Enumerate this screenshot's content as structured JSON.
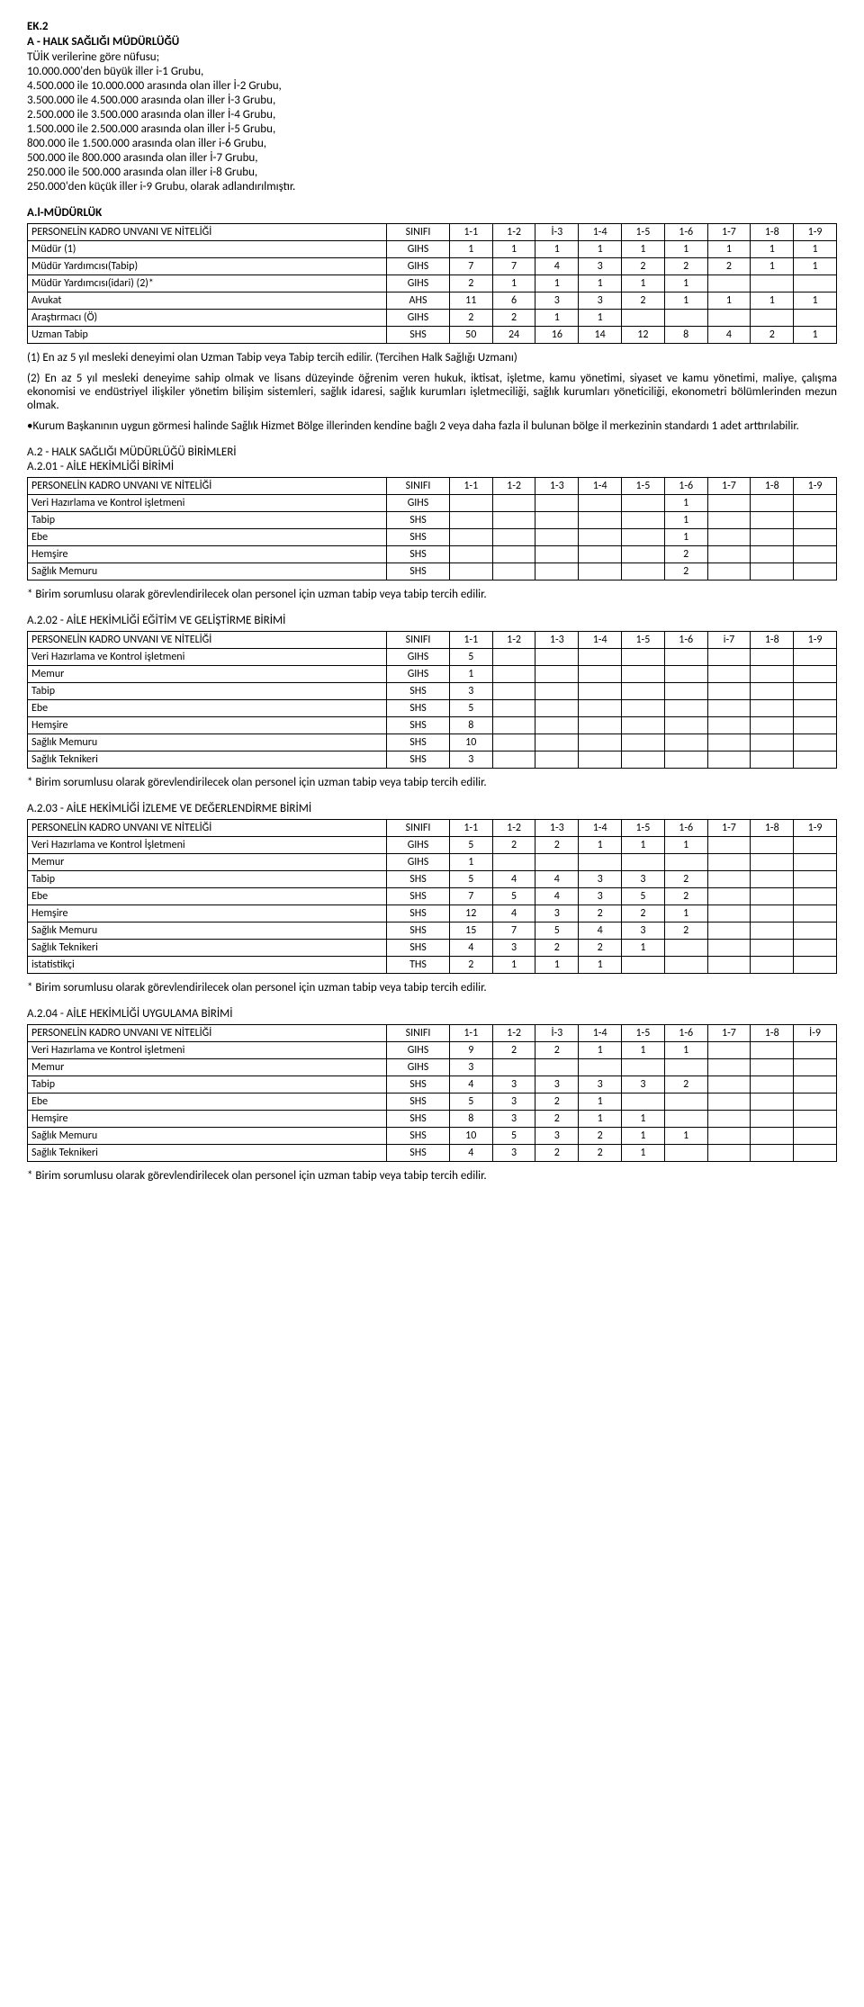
{
  "top": {
    "ek": "EK.2",
    "title": "A - HALK SAĞLIĞI MÜDÜRLÜĞÜ",
    "sub": "TÜİK verilerine göre nüfusu;",
    "rules": [
      "10.000.000'den büyük iller i-1 Grubu,",
      "4.500.000 ile 10.000.000 arasında olan iller İ-2 Grubu,",
      "3.500.000 ile 4.500.000 arasında olan iller İ-3 Grubu,",
      "2.500.000 ile 3.500.000 arasında olan iller İ-4 Grubu,",
      "1.500.000 ile 2.500.000 arasında olan iller İ-5 Grubu,",
      "800.000 ile 1.500.000 arasında olan iller i-6 Grubu,",
      "500.000 ile 800.000 arasında olan iller İ-7 Grubu,",
      "250.000 ile 500.000 arasında olan iller i-8 Grubu,",
      "250.000'den küçük iller i-9 Grubu, olarak adlandırılmıştır."
    ]
  },
  "t1": {
    "title": "A.l-MÜDÜRLÜK",
    "headerLabel": "PERSONELİN KADRO UNVANI VE NİTELİĞİ",
    "sinifi": "SINIFI",
    "cols": [
      "1-1",
      "1-2",
      "İ-3",
      "1-4",
      "1-5",
      "1-6",
      "1-7",
      "1-8",
      "1-9"
    ],
    "rows": [
      {
        "l": "Müdür (1)",
        "s": "GIHS",
        "v": [
          "1",
          "1",
          "1",
          "1",
          "1",
          "1",
          "1",
          "1",
          "1"
        ]
      },
      {
        "l": "Müdür Yardımcısı(Tabip)",
        "s": "GIHS",
        "v": [
          "7",
          "7",
          "4",
          "3",
          "2",
          "2",
          "2",
          "1",
          "1"
        ]
      },
      {
        "l": "Müdür Yardımcısı(idari) (2)*",
        "s": "GIHS",
        "v": [
          "2",
          "1",
          "1",
          "1",
          "1",
          "1",
          "",
          "",
          ""
        ]
      },
      {
        "l": "Avukat",
        "s": "AHS",
        "v": [
          "11",
          "6",
          "3",
          "3",
          "2",
          "1",
          "1",
          "1",
          "1"
        ]
      },
      {
        "l": "Araştırmacı (Ö)",
        "s": "GIHS",
        "v": [
          "2",
          "2",
          "1",
          "1",
          "",
          "",
          "",
          "",
          ""
        ]
      },
      {
        "l": "Uzman Tabip",
        "s": "SHS",
        "v": [
          "50",
          "24",
          "16",
          "14",
          "12",
          "8",
          "4",
          "2",
          "1"
        ]
      }
    ],
    "notes": [
      "(1) En az 5 yıl mesleki deneyimi olan Uzman Tabip veya Tabip tercih edilir. (Tercihen Halk Sağlığı Uzmanı)",
      "(2) En az 5 yıl mesleki deneyime sahip olmak ve lisans düzeyinde öğrenim veren hukuk, iktisat, işletme, kamu yönetimi, siyaset ve kamu yönetimi, maliye, çalışma ekonomisi ve endüstriyel ilişkiler yönetim bilişim sistemleri, sağlık idaresi, sağlık kurumları işletmeciliği, sağlık kurumları yöneticiliği, ekonometri bölümlerinden mezun olmak.",
      "•Kurum Başkanının uygun görmesi halinde Sağlık Hizmet Bölge illerinden kendine bağlı 2 veya daha fazla il bulunan bölge il merkezinin standardı 1 adet arttırılabilir."
    ]
  },
  "t2": {
    "line1": "A.2 - HALK SAĞLIĞI MÜDÜRLÜĞÜ BİRİMLERİ",
    "line2": "A.2.01 - AİLE HEKİMLİĞİ BİRİMİ",
    "headerLabel": "PERSONELİN KADRO UNVANI VE NİTELİĞİ",
    "sinifi": "SINIFI",
    "cols": [
      "1-1",
      "1-2",
      "1-3",
      "1-4",
      "1-5",
      "1-6",
      "1-7",
      "1-8",
      "1-9"
    ],
    "rows": [
      {
        "l": "Veri Hazırlama ve Kontrol işletmeni",
        "s": "GIHS",
        "v": [
          "",
          "",
          "",
          "",
          "",
          "1",
          "",
          "",
          ""
        ]
      },
      {
        "l": "Tabip",
        "s": "SHS",
        "v": [
          "",
          "",
          "",
          "",
          "",
          "1",
          "",
          "",
          ""
        ]
      },
      {
        "l": "Ebe",
        "s": "SHS",
        "v": [
          "",
          "",
          "",
          "",
          "",
          "1",
          "",
          "",
          ""
        ]
      },
      {
        "l": "Hemşire",
        "s": "SHS",
        "v": [
          "",
          "",
          "",
          "",
          "",
          "2",
          "",
          "",
          ""
        ]
      },
      {
        "l": "Sağlık Memuru",
        "s": "SHS",
        "v": [
          "",
          "",
          "",
          "",
          "",
          "2",
          "",
          "",
          ""
        ]
      }
    ],
    "note": "* Birim sorumlusu olarak görevlendirilecek olan personel için uzman tabip veya tabip tercih edilir."
  },
  "t3": {
    "title": "A.2.02 - AİLE HEKİMLİĞİ EĞİTİM VE GELİŞTİRME BİRİMİ",
    "headerLabel": "PERSONELİN KADRO UNVANI VE NİTELİĞİ",
    "sinifi": "SINIFI",
    "cols": [
      "1-1",
      "1-2",
      "1-3",
      "1-4",
      "1-5",
      "1-6",
      "i-7",
      "1-8",
      "1-9"
    ],
    "rows": [
      {
        "l": "Veri Hazırlama ve Kontrol işletmeni",
        "s": "GIHS",
        "v": [
          "5",
          "",
          "",
          "",
          "",
          "",
          "",
          "",
          ""
        ]
      },
      {
        "l": "Memur",
        "s": "GIHS",
        "v": [
          "1",
          "",
          "",
          "",
          "",
          "",
          "",
          "",
          ""
        ]
      },
      {
        "l": "Tabip",
        "s": "SHS",
        "v": [
          "3",
          "",
          "",
          "",
          "",
          "",
          "",
          "",
          ""
        ]
      },
      {
        "l": "Ebe",
        "s": "SHS",
        "v": [
          "5",
          "",
          "",
          "",
          "",
          "",
          "",
          "",
          ""
        ]
      },
      {
        "l": "Hemşire",
        "s": "SHS",
        "v": [
          "8",
          "",
          "",
          "",
          "",
          "",
          "",
          "",
          ""
        ]
      },
      {
        "l": "Sağlık Memuru",
        "s": "SHS",
        "v": [
          "10",
          "",
          "",
          "",
          "",
          "",
          "",
          "",
          ""
        ]
      },
      {
        "l": "Sağlık Teknikeri",
        "s": "SHS",
        "v": [
          "3",
          "",
          "",
          "",
          "",
          "",
          "",
          "",
          ""
        ]
      }
    ],
    "note": "* Birim sorumlusu olarak görevlendirilecek olan personel için uzman tabip veya tabip tercih edilir."
  },
  "t4": {
    "title": "A.2.03 - AİLE HEKİMLİĞİ İZLEME VE DEĞERLENDİRME BİRİMİ",
    "headerLabel": "PERSONELİN KADRO UNVANI VE NİTELİĞİ",
    "sinifi": "SINIFI",
    "cols": [
      "1-1",
      "1-2",
      "1-3",
      "1-4",
      "1-5",
      "1-6",
      "1-7",
      "1-8",
      "1-9"
    ],
    "rows": [
      {
        "l": "Veri Hazırlama ve Kontrol İşletmeni",
        "s": "GIHS",
        "v": [
          "5",
          "2",
          "2",
          "1",
          "1",
          "1",
          "",
          "",
          ""
        ]
      },
      {
        "l": "Memur",
        "s": "GIHS",
        "v": [
          "1",
          "",
          "",
          "",
          "",
          "",
          "",
          "",
          ""
        ]
      },
      {
        "l": "Tabip",
        "s": "SHS",
        "v": [
          "5",
          "4",
          "4",
          "3",
          "3",
          "2",
          "",
          "",
          ""
        ]
      },
      {
        "l": "Ebe",
        "s": "SHS",
        "v": [
          "7",
          "5",
          "4",
          "3",
          "5",
          "2",
          "",
          "",
          ""
        ]
      },
      {
        "l": "Hemşire",
        "s": "SHS",
        "v": [
          "12",
          "4",
          "3",
          "2",
          "2",
          "1",
          "",
          "",
          ""
        ]
      },
      {
        "l": "Sağlık Memuru",
        "s": "SHS",
        "v": [
          "15",
          "7",
          "5",
          "4",
          "3",
          "2",
          "",
          "",
          ""
        ]
      },
      {
        "l": "Sağlık Teknikeri",
        "s": "SHS",
        "v": [
          "4",
          "3",
          "2",
          "2",
          "1",
          "",
          "",
          "",
          ""
        ]
      },
      {
        "l": "istatistikçi",
        "s": "THS",
        "v": [
          "2",
          "1",
          "1",
          "1",
          "",
          "",
          "",
          "",
          ""
        ]
      }
    ],
    "note": "* Birim sorumlusu olarak görevlendirilecek olan personel için uzman tabip veya tabip tercih edilir."
  },
  "t5": {
    "title": "A.2.04 - AİLE HEKİMLİĞİ UYGULAMA BİRİMİ",
    "headerLabel": "PERSONELİN KADRO UNVANI VE NİTELİĞİ",
    "sinifi": "SINIFI",
    "cols": [
      "1-1",
      "1-2",
      "İ-3",
      "1-4",
      "1-5",
      "1-6",
      "1-7",
      "1-8",
      "İ-9"
    ],
    "rows": [
      {
        "l": "Veri Hazırlama ve Kontrol işletmeni",
        "s": "GIHS",
        "v": [
          "9",
          "2",
          "2",
          "1",
          "1",
          "1",
          "",
          "",
          ""
        ]
      },
      {
        "l": "Memur",
        "s": "GIHS",
        "v": [
          "3",
          "",
          "",
          "",
          "",
          "",
          "",
          "",
          ""
        ]
      },
      {
        "l": "Tabip",
        "s": "SHS",
        "v": [
          "4",
          "3",
          "3",
          "3",
          "3",
          "2",
          "",
          "",
          ""
        ]
      },
      {
        "l": "Ebe",
        "s": "SHS",
        "v": [
          "5",
          "3",
          "2",
          "1",
          "",
          "",
          "",
          "",
          ""
        ]
      },
      {
        "l": "Hemşire",
        "s": "SHS",
        "v": [
          "8",
          "3",
          "2",
          "1",
          "1",
          "",
          "",
          "",
          ""
        ]
      },
      {
        "l": "Sağlık Memuru",
        "s": "SHS",
        "v": [
          "10",
          "5",
          "3",
          "2",
          "1",
          "1",
          "",
          "",
          ""
        ]
      },
      {
        "l": "Sağlık Teknikeri",
        "s": "SHS",
        "v": [
          "4",
          "3",
          "2",
          "2",
          "1",
          "",
          "",
          "",
          ""
        ]
      }
    ],
    "note": "* Birim sorumlusu olarak görevlendirilecek olan personel için uzman tabip veya tabip tercih edilir."
  }
}
